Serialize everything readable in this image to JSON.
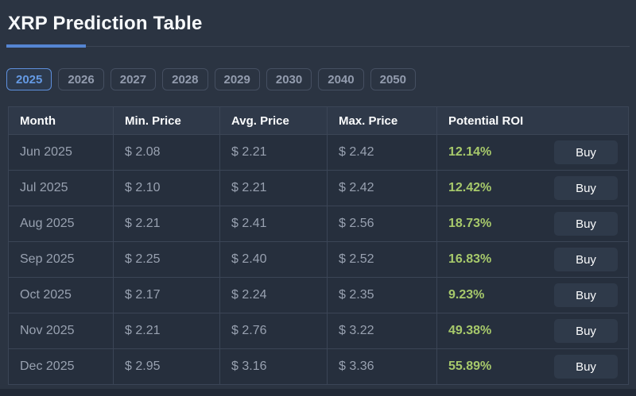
{
  "page": {
    "title": "XRP Prediction Table",
    "background_color": "#2b3442",
    "accent_color": "#5585d2"
  },
  "tabs": [
    {
      "label": "2025",
      "selected": true
    },
    {
      "label": "2026",
      "selected": false
    },
    {
      "label": "2027",
      "selected": false
    },
    {
      "label": "2028",
      "selected": false
    },
    {
      "label": "2029",
      "selected": false
    },
    {
      "label": "2030",
      "selected": false
    },
    {
      "label": "2040",
      "selected": false
    },
    {
      "label": "2050",
      "selected": false
    }
  ],
  "table": {
    "columns": [
      "Month",
      "Min. Price",
      "Avg. Price",
      "Max. Price",
      "Potential ROI"
    ],
    "buy_label": "Buy",
    "roi_color": "#a7c96b",
    "rows": [
      {
        "month": "Jun 2025",
        "min": "$ 2.08",
        "avg": "$ 2.21",
        "max": "$ 2.42",
        "roi": "12.14%"
      },
      {
        "month": "Jul 2025",
        "min": "$ 2.10",
        "avg": "$ 2.21",
        "max": "$ 2.42",
        "roi": "12.42%"
      },
      {
        "month": "Aug 2025",
        "min": "$ 2.21",
        "avg": "$ 2.41",
        "max": "$ 2.56",
        "roi": "18.73%"
      },
      {
        "month": "Sep 2025",
        "min": "$ 2.25",
        "avg": "$ 2.40",
        "max": "$ 2.52",
        "roi": "16.83%"
      },
      {
        "month": "Oct 2025",
        "min": "$ 2.17",
        "avg": "$ 2.24",
        "max": "$ 2.35",
        "roi": "9.23%"
      },
      {
        "month": "Nov 2025",
        "min": "$ 2.21",
        "avg": "$ 2.76",
        "max": "$ 3.22",
        "roi": "49.38%"
      },
      {
        "month": "Dec 2025",
        "min": "$ 2.95",
        "avg": "$ 3.16",
        "max": "$ 3.36",
        "roi": "55.89%"
      }
    ]
  }
}
